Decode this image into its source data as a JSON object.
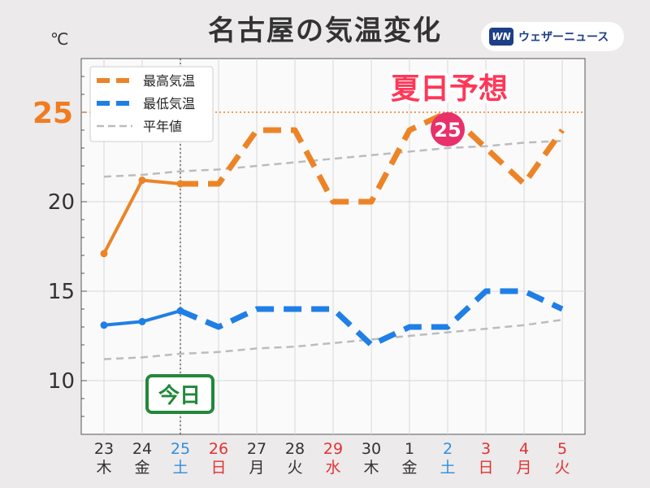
{
  "header": {
    "title": "名古屋の気温変化",
    "unit": "℃",
    "brand_logo": "WN",
    "brand_name": "ウェザーニュース"
  },
  "annotations": {
    "summer_label": "夏日予想",
    "summer_value": "25",
    "today_label": "今日",
    "threshold_label": "25"
  },
  "colors": {
    "max": "#ec8427",
    "min": "#1f7fe6",
    "normal": "#bcbcbc",
    "threshold": "#f07c22",
    "weekday": "#333333",
    "saturday": "#2f8fe0",
    "holiday": "#e03333",
    "summer_text": "#ff3858",
    "badge": "#e8306b",
    "today": "#22883b"
  },
  "chart_data": {
    "type": "line",
    "title": "名古屋の気温変化",
    "ylabel": "℃",
    "ylim": [
      7,
      28
    ],
    "yticks": [
      10,
      15,
      20,
      25
    ],
    "grid": true,
    "legend": "top-left",
    "threshold": 25,
    "today_index": 2,
    "categories": [
      {
        "day": "23",
        "weekday": "木",
        "type": "weekday"
      },
      {
        "day": "24",
        "weekday": "金",
        "type": "weekday"
      },
      {
        "day": "25",
        "weekday": "土",
        "type": "saturday"
      },
      {
        "day": "26",
        "weekday": "日",
        "type": "holiday"
      },
      {
        "day": "27",
        "weekday": "月",
        "type": "weekday"
      },
      {
        "day": "28",
        "weekday": "火",
        "type": "weekday"
      },
      {
        "day": "29",
        "weekday": "水",
        "type": "holiday"
      },
      {
        "day": "30",
        "weekday": "木",
        "type": "weekday"
      },
      {
        "day": "1",
        "weekday": "金",
        "type": "weekday"
      },
      {
        "day": "2",
        "weekday": "土",
        "type": "saturday"
      },
      {
        "day": "3",
        "weekday": "日",
        "type": "holiday"
      },
      {
        "day": "4",
        "weekday": "月",
        "type": "holiday"
      },
      {
        "day": "5",
        "weekday": "火",
        "type": "holiday"
      }
    ],
    "series": [
      {
        "name": "最高気温",
        "key": "max",
        "values": [
          17.1,
          21.2,
          21,
          21,
          24,
          24,
          20,
          20,
          24,
          25,
          23,
          21,
          24
        ]
      },
      {
        "name": "最低気温",
        "key": "min",
        "values": [
          13.1,
          13.3,
          13.9,
          13,
          14,
          14,
          14,
          12,
          13,
          13,
          15,
          15,
          14
        ]
      },
      {
        "name": "平年値",
        "key": "normal_max",
        "values": [
          21.4,
          21.5,
          21.7,
          21.8,
          22.0,
          22.2,
          22.4,
          22.6,
          22.8,
          23.0,
          23.1,
          23.3,
          23.4
        ]
      },
      {
        "name": "",
        "key": "normal_min",
        "values": [
          11.2,
          11.3,
          11.5,
          11.6,
          11.8,
          11.9,
          12.1,
          12.3,
          12.5,
          12.7,
          12.9,
          13.1,
          13.4
        ]
      }
    ]
  }
}
